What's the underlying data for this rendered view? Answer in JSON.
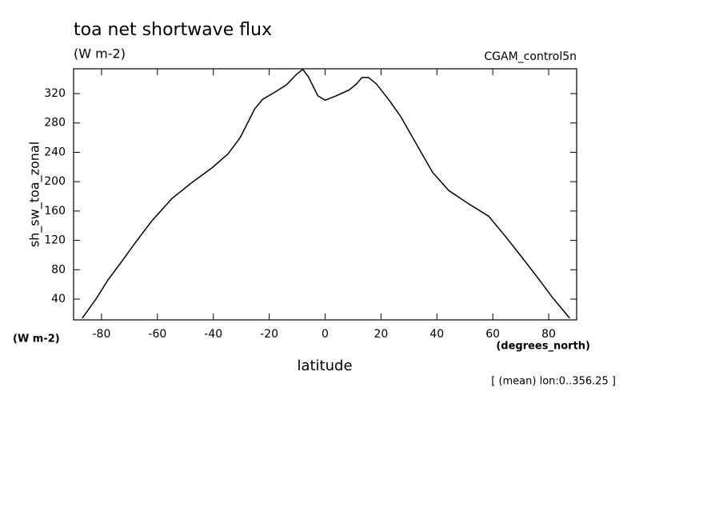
{
  "chart_data": {
    "type": "line",
    "title": "toa net shortwave flux",
    "subtitle": "(W m-2)",
    "dataset": "CGAM_control5n",
    "ylabel": "sh_sw_toa_zonal",
    "y_units": "(W m-2)",
    "xlabel": "latitude",
    "x_units": "(degrees_north)",
    "footnote": "[ (mean) lon:0..356.25 ]",
    "x": [
      -86.9,
      -82,
      -77.7,
      -73.4,
      -67.7,
      -61.9,
      -54.8,
      -47.6,
      -40.4,
      -34.7,
      -30.4,
      -25.2,
      -22.4,
      -17.5,
      -13.8,
      -10.3,
      -8.0,
      -6.0,
      -2.6,
      0,
      4.0,
      8.6,
      11.2,
      13.2,
      15.5,
      18.4,
      22.9,
      27.0,
      32.7,
      38.4,
      44.2,
      51.3,
      58.5,
      64.2,
      70.0,
      75.7,
      81.4,
      87.5
    ],
    "series": [
      {
        "name": "sh_sw_toa_zonal",
        "color": "#000000",
        "values": [
          14,
          40,
          66,
          88,
          118,
          147,
          177,
          199,
          219,
          238,
          260,
          299,
          312,
          323,
          332,
          346,
          353,
          343,
          317,
          311,
          317,
          325,
          333,
          342,
          342,
          333,
          311,
          289,
          251,
          213,
          188,
          170,
          153,
          127,
          99,
          71,
          42,
          14
        ]
      }
    ],
    "xlim": [
      -90,
      90
    ],
    "xticks": [
      -80,
      -60,
      -40,
      -20,
      0,
      20,
      40,
      60,
      80
    ],
    "ylim": [
      11.7,
      353.8
    ],
    "yticks": [
      40,
      80,
      120,
      160,
      200,
      240,
      280,
      320
    ]
  }
}
